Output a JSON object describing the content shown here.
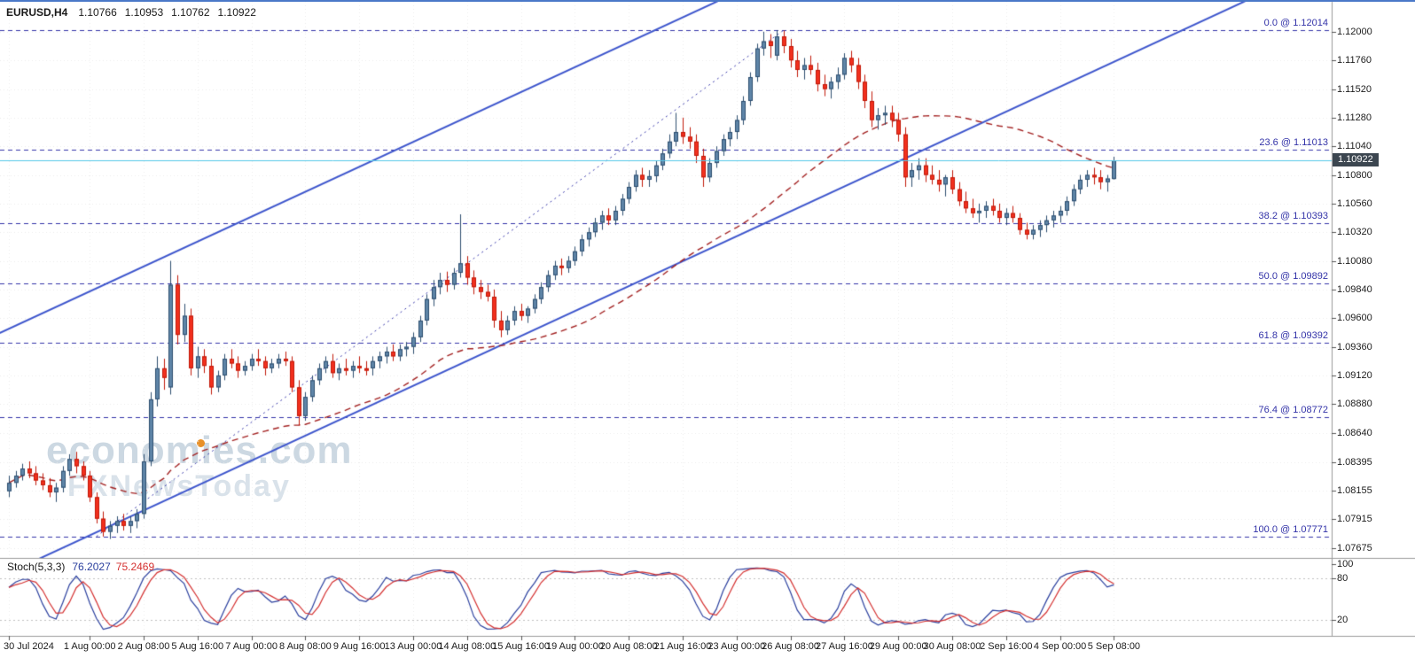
{
  "header": {
    "symbol": "EURUSD,H4",
    "open": "1.10766",
    "high": "1.10953",
    "low": "1.10762",
    "close": "1.10922"
  },
  "watermark": {
    "line1": "economies.com",
    "line2": "FXNewsToday"
  },
  "axis": {
    "current_price_tag": "1.10922",
    "price_labels": [
      "1.12000",
      "1.11760",
      "1.11520",
      "1.11280",
      "1.11040",
      "1.10800",
      "1.10560",
      "1.10320",
      "1.10080",
      "1.09840",
      "1.09600",
      "1.09360",
      "1.09120",
      "1.08880",
      "1.08640",
      "1.08395",
      "1.08155",
      "1.07915",
      "1.07675"
    ],
    "stoch_labels": [
      {
        "text": "100",
        "value": 100
      },
      {
        "text": "80",
        "value": 80
      },
      {
        "text": "20",
        "value": 20
      }
    ],
    "time_labels": [
      {
        "text": "30 Jul 2024",
        "index": 0
      },
      {
        "text": "1 Aug 00:00",
        "index": 12
      },
      {
        "text": "2 Aug 08:00",
        "index": 20
      },
      {
        "text": "5 Aug 16:00",
        "index": 28
      },
      {
        "text": "7 Aug 00:00",
        "index": 36
      },
      {
        "text": "8 Aug 08:00",
        "index": 44
      },
      {
        "text": "9 Aug 16:00",
        "index": 52
      },
      {
        "text": "13 Aug 00:00",
        "index": 60
      },
      {
        "text": "14 Aug 08:00",
        "index": 68
      },
      {
        "text": "15 Aug 16:00",
        "index": 76
      },
      {
        "text": "19 Aug 00:00",
        "index": 84
      },
      {
        "text": "20 Aug 08:00",
        "index": 92
      },
      {
        "text": "21 Aug 16:00",
        "index": 100
      },
      {
        "text": "23 Aug 00:00",
        "index": 108
      },
      {
        "text": "26 Aug 08:00",
        "index": 116
      },
      {
        "text": "27 Aug 16:00",
        "index": 124
      },
      {
        "text": "29 Aug 00:00",
        "index": 132
      },
      {
        "text": "30 Aug 08:00",
        "index": 140
      },
      {
        "text": "2 Sep 16:00",
        "index": 148
      },
      {
        "text": "4 Sep 00:00",
        "index": 156
      },
      {
        "text": "5 Sep 08:00",
        "index": 164
      }
    ]
  },
  "chart_data": {
    "type": "candlestick",
    "symbol": "EURUSD",
    "timeframe": "H4",
    "ylim": [
      1.07591,
      1.12251
    ],
    "current_price": 1.10922,
    "fibonacci": {
      "levels": [
        {
          "label": "0.0 @ 1.12014",
          "price": 1.12014
        },
        {
          "label": "23.6 @ 1.11013",
          "price": 1.11013
        },
        {
          "label": "38.2 @ 1.10393",
          "price": 1.10393
        },
        {
          "label": "50.0 @ 1.09892",
          "price": 1.09892
        },
        {
          "label": "61.8 @ 1.09392",
          "price": 1.09392
        },
        {
          "label": "76.4 @ 1.08772",
          "price": 1.08772
        },
        {
          "label": "100.0 @ 1.07771",
          "price": 1.07771
        }
      ],
      "diagonal": {
        "from": [
          13,
          1.07771
        ],
        "to": [
          115,
          1.12014
        ]
      }
    },
    "trendlines": [
      {
        "name": "channel-upper",
        "from": [
          -4,
          1.09406
        ],
        "to": [
          108,
          1.12329
        ]
      },
      {
        "name": "channel-lower",
        "from": [
          2,
          1.07519
        ],
        "to": [
          196,
          1.12583
        ]
      }
    ],
    "moving_average": {
      "period": 45,
      "style": "dashed"
    },
    "stochastic": {
      "label": "Stoch(5,3,3)",
      "k_value": "76.2027",
      "d_value": "75.2469",
      "k_period": 5,
      "d_period": 3,
      "slowing": 3,
      "levels": [
        20,
        80
      ],
      "scale": [
        0,
        100
      ]
    },
    "candles": [
      [
        1.0815,
        1.0828,
        1.081,
        1.0822
      ],
      [
        1.0822,
        1.0832,
        1.0818,
        1.0828
      ],
      [
        1.0828,
        1.0838,
        1.0824,
        1.0834
      ],
      [
        1.0834,
        1.084,
        1.0826,
        1.083
      ],
      [
        1.083,
        1.0836,
        1.082,
        1.0824
      ],
      [
        1.0824,
        1.083,
        1.0816,
        1.082
      ],
      [
        1.082,
        1.0826,
        1.081,
        1.0814
      ],
      [
        1.0814,
        1.0822,
        1.0806,
        1.0818
      ],
      [
        1.0818,
        1.0836,
        1.0814,
        1.0832
      ],
      [
        1.0832,
        1.0846,
        1.0828,
        1.0842
      ],
      [
        1.0842,
        1.0848,
        1.083,
        1.0836
      ],
      [
        1.0836,
        1.084,
        1.0824,
        1.0828
      ],
      [
        1.0828,
        1.0832,
        1.0806,
        1.081
      ],
      [
        1.081,
        1.0814,
        1.0788,
        1.0792
      ],
      [
        1.0792,
        1.0798,
        1.0777,
        1.0781
      ],
      [
        1.0781,
        1.079,
        1.0775,
        1.0786
      ],
      [
        1.0786,
        1.0794,
        1.078,
        1.079
      ],
      [
        1.079,
        1.0796,
        1.0782,
        1.0786
      ],
      [
        1.0786,
        1.0794,
        1.078,
        1.079
      ],
      [
        1.079,
        1.08,
        1.0784,
        1.0796
      ],
      [
        1.0796,
        1.0846,
        1.0792,
        1.084
      ],
      [
        1.084,
        1.0898,
        1.0836,
        1.0892
      ],
      [
        1.0892,
        1.0928,
        1.0886,
        1.0918
      ],
      [
        1.0918,
        1.0926,
        1.09,
        1.091
      ],
      [
        1.0902,
        1.1008,
        1.0896,
        1.0988
      ],
      [
        1.0988,
        1.0996,
        1.0938,
        1.0946
      ],
      [
        1.0946,
        1.0972,
        1.094,
        1.0962
      ],
      [
        1.0962,
        1.0968,
        1.0912,
        1.0918
      ],
      [
        1.0918,
        1.0936,
        1.091,
        1.0928
      ],
      [
        1.0928,
        1.0934,
        1.0914,
        1.092
      ],
      [
        1.092,
        1.0926,
        1.0896,
        1.0902
      ],
      [
        1.0902,
        1.0916,
        1.0898,
        1.0912
      ],
      [
        1.0912,
        1.093,
        1.0908,
        1.0926
      ],
      [
        1.0926,
        1.0934,
        1.0918,
        1.0922
      ],
      [
        1.0922,
        1.0928,
        1.091,
        1.0916
      ],
      [
        1.0916,
        1.0924,
        1.0912,
        1.092
      ],
      [
        1.092,
        1.093,
        1.0916,
        1.0926
      ],
      [
        1.0926,
        1.0934,
        1.092,
        1.0924
      ],
      [
        1.0924,
        1.0928,
        1.0912,
        1.0918
      ],
      [
        1.0918,
        1.0926,
        1.0914,
        1.0922
      ],
      [
        1.0922,
        1.093,
        1.0918,
        1.0926
      ],
      [
        1.0926,
        1.0932,
        1.092,
        1.0924
      ],
      [
        1.0924,
        1.0928,
        1.0898,
        1.0902
      ],
      [
        1.0902,
        1.0908,
        1.087,
        1.0878
      ],
      [
        1.0878,
        1.0898,
        1.0874,
        1.0894
      ],
      [
        1.0894,
        1.0912,
        1.089,
        1.0908
      ],
      [
        1.0908,
        1.0922,
        1.0904,
        1.0918
      ],
      [
        1.0918,
        1.0928,
        1.0914,
        1.0924
      ],
      [
        1.0924,
        1.093,
        1.091,
        1.0914
      ],
      [
        1.0914,
        1.0922,
        1.0908,
        1.0918
      ],
      [
        1.0918,
        1.0926,
        1.0912,
        1.0916
      ],
      [
        1.0916,
        1.0924,
        1.091,
        1.092
      ],
      [
        1.092,
        1.0928,
        1.0914,
        1.0918
      ],
      [
        1.0918,
        1.0924,
        1.0912,
        1.0916
      ],
      [
        1.0918,
        1.0928,
        1.0912,
        1.0924
      ],
      [
        1.0924,
        1.0932,
        1.0918,
        1.0928
      ],
      [
        1.0928,
        1.0936,
        1.0922,
        1.0932
      ],
      [
        1.0932,
        1.0938,
        1.0924,
        1.0928
      ],
      [
        1.0928,
        1.0938,
        1.0924,
        1.0934
      ],
      [
        1.0934,
        1.094,
        1.0928,
        1.0936
      ],
      [
        1.0936,
        1.0948,
        1.093,
        1.0944
      ],
      [
        1.0944,
        1.0962,
        1.094,
        1.0958
      ],
      [
        1.0958,
        1.098,
        1.0954,
        1.0976
      ],
      [
        1.0976,
        1.0992,
        1.097,
        1.0986
      ],
      [
        1.0986,
        1.0998,
        1.098,
        1.0992
      ],
      [
        1.0992,
        1.0999,
        1.0982,
        1.0988
      ],
      [
        1.0988,
        1.1002,
        1.0984,
        1.0998
      ],
      [
        1.0998,
        1.1047,
        1.0994,
        1.1006
      ],
      [
        1.1006,
        1.1012,
        1.0988,
        1.0994
      ],
      [
        1.0994,
        1.1,
        1.098,
        1.0986
      ],
      [
        1.0986,
        1.0992,
        1.0976,
        1.0982
      ],
      [
        1.0982,
        1.0988,
        1.0974,
        1.0978
      ],
      [
        1.0978,
        1.0984,
        1.0952,
        1.0958
      ],
      [
        1.0958,
        1.0966,
        1.0944,
        1.095
      ],
      [
        1.095,
        1.0962,
        1.0946,
        1.0958
      ],
      [
        1.0958,
        1.097,
        1.0954,
        1.0966
      ],
      [
        1.0966,
        1.0972,
        1.0958,
        1.0962
      ],
      [
        1.0962,
        1.097,
        1.0956,
        1.0968
      ],
      [
        1.0968,
        1.098,
        1.0964,
        1.0976
      ],
      [
        1.0976,
        1.099,
        1.0972,
        1.0986
      ],
      [
        1.0986,
        1.1,
        1.0982,
        1.0996
      ],
      [
        1.0996,
        1.1008,
        1.0992,
        1.1004
      ],
      [
        1.1004,
        1.101,
        1.0996,
        1.1002
      ],
      [
        1.1002,
        1.1012,
        1.0998,
        1.1008
      ],
      [
        1.1008,
        1.102,
        1.1004,
        1.1016
      ],
      [
        1.1016,
        1.103,
        1.1012,
        1.1026
      ],
      [
        1.1026,
        1.1036,
        1.102,
        1.1032
      ],
      [
        1.1032,
        1.1044,
        1.1028,
        1.104
      ],
      [
        1.104,
        1.105,
        1.1034,
        1.1046
      ],
      [
        1.1046,
        1.1052,
        1.1038,
        1.1042
      ],
      [
        1.1042,
        1.1054,
        1.1038,
        1.105
      ],
      [
        1.105,
        1.1064,
        1.1046,
        1.106
      ],
      [
        1.106,
        1.1074,
        1.1056,
        1.107
      ],
      [
        1.107,
        1.1084,
        1.1066,
        1.108
      ],
      [
        1.108,
        1.1086,
        1.107,
        1.1076
      ],
      [
        1.1076,
        1.1084,
        1.107,
        1.1079
      ],
      [
        1.1079,
        1.1092,
        1.1074,
        1.1088
      ],
      [
        1.1088,
        1.1102,
        1.1084,
        1.1098
      ],
      [
        1.1098,
        1.1114,
        1.1094,
        1.1108
      ],
      [
        1.1108,
        1.1132,
        1.1104,
        1.1116
      ],
      [
        1.1116,
        1.1128,
        1.1106,
        1.1112
      ],
      [
        1.1112,
        1.112,
        1.1102,
        1.1108
      ],
      [
        1.1108,
        1.1114,
        1.109,
        1.1096
      ],
      [
        1.1096,
        1.1102,
        1.107,
        1.1078
      ],
      [
        1.1078,
        1.1094,
        1.1074,
        1.109
      ],
      [
        1.109,
        1.1104,
        1.1086,
        1.11
      ],
      [
        1.11,
        1.1114,
        1.1096,
        1.111
      ],
      [
        1.111,
        1.112,
        1.1104,
        1.1116
      ],
      [
        1.1116,
        1.113,
        1.111,
        1.1126
      ],
      [
        1.1126,
        1.1146,
        1.1122,
        1.1142
      ],
      [
        1.1142,
        1.1166,
        1.1138,
        1.1162
      ],
      [
        1.1162,
        1.119,
        1.1158,
        1.1186
      ],
      [
        1.1186,
        1.12,
        1.118,
        1.1192
      ],
      [
        1.1192,
        1.1198,
        1.1178,
        1.1188
      ],
      [
        1.118,
        1.12014,
        1.1176,
        1.1196
      ],
      [
        1.1196,
        1.1201,
        1.1182,
        1.1188
      ],
      [
        1.1188,
        1.1194,
        1.117,
        1.1176
      ],
      [
        1.1176,
        1.1184,
        1.1162,
        1.1168
      ],
      [
        1.1168,
        1.1178,
        1.116,
        1.1172
      ],
      [
        1.1172,
        1.118,
        1.1164,
        1.1168
      ],
      [
        1.1168,
        1.1174,
        1.115,
        1.1156
      ],
      [
        1.1156,
        1.1164,
        1.1146,
        1.1152
      ],
      [
        1.1152,
        1.1162,
        1.1144,
        1.1158
      ],
      [
        1.1158,
        1.117,
        1.1152,
        1.1164
      ],
      [
        1.1164,
        1.1182,
        1.116,
        1.1178
      ],
      [
        1.1178,
        1.1184,
        1.1166,
        1.1172
      ],
      [
        1.1172,
        1.1178,
        1.1152,
        1.1158
      ],
      [
        1.1158,
        1.1164,
        1.1136,
        1.1142
      ],
      [
        1.1142,
        1.115,
        1.112,
        1.1126
      ],
      [
        1.1126,
        1.1136,
        1.1118,
        1.113
      ],
      [
        1.113,
        1.1138,
        1.1122,
        1.1132
      ],
      [
        1.1132,
        1.1138,
        1.112,
        1.1126
      ],
      [
        1.1126,
        1.1132,
        1.1108,
        1.1114
      ],
      [
        1.1114,
        1.112,
        1.107,
        1.1078
      ],
      [
        1.1078,
        1.109,
        1.107,
        1.1084
      ],
      [
        1.1084,
        1.1094,
        1.1076,
        1.1088
      ],
      [
        1.1088,
        1.1094,
        1.1074,
        1.108
      ],
      [
        1.108,
        1.1088,
        1.1072,
        1.1076
      ],
      [
        1.1076,
        1.1084,
        1.1066,
        1.1072
      ],
      [
        1.1072,
        1.108,
        1.1062,
        1.1078
      ],
      [
        1.1078,
        1.1084,
        1.1064,
        1.1068
      ],
      [
        1.1068,
        1.1074,
        1.1054,
        1.1058
      ],
      [
        1.1058,
        1.1066,
        1.1048,
        1.1052
      ],
      [
        1.1052,
        1.106,
        1.1044,
        1.1048
      ],
      [
        1.1048,
        1.1056,
        1.104,
        1.105
      ],
      [
        1.105,
        1.1058,
        1.1044,
        1.1054
      ],
      [
        1.1054,
        1.106,
        1.1046,
        1.105
      ],
      [
        1.105,
        1.1056,
        1.104,
        1.1044
      ],
      [
        1.1044,
        1.1052,
        1.1038,
        1.1048
      ],
      [
        1.1048,
        1.1054,
        1.104,
        1.1044
      ],
      [
        1.1044,
        1.1048,
        1.103,
        1.1034
      ],
      [
        1.1034,
        1.104,
        1.1026,
        1.103
      ],
      [
        1.103,
        1.1038,
        1.1026,
        1.1034
      ],
      [
        1.1034,
        1.1042,
        1.1028,
        1.1038
      ],
      [
        1.1038,
        1.1046,
        1.1032,
        1.1042
      ],
      [
        1.1042,
        1.105,
        1.1036,
        1.1046
      ],
      [
        1.1046,
        1.1054,
        1.104,
        1.105
      ],
      [
        1.105,
        1.1062,
        1.1046,
        1.1058
      ],
      [
        1.1058,
        1.1072,
        1.1054,
        1.1068
      ],
      [
        1.1068,
        1.108,
        1.1064,
        1.1076
      ],
      [
        1.1076,
        1.1084,
        1.107,
        1.108
      ],
      [
        1.108,
        1.1086,
        1.1072,
        1.1078
      ],
      [
        1.1078,
        1.1084,
        1.1068,
        1.1074
      ],
      [
        1.1074,
        1.108,
        1.1066,
        1.1077
      ],
      [
        1.10766,
        1.10953,
        1.10762,
        1.10922
      ]
    ]
  },
  "colors": {
    "bull_candle_fill": "#5f85a8",
    "bull_candle_border": "#2c4d6e",
    "bear_candle_fill": "#f2301e",
    "bear_candle_border": "#c01808",
    "ma_line": "#a32222",
    "channel_line": "#3d55cc",
    "fib_line": "#3333a8",
    "price_line": "#56c8e8",
    "price_tag_bg": "#3c4650",
    "grid": "#ececec",
    "separator": "#9a9a9a",
    "stoch_k": "#2a3f9e",
    "stoch_d": "#d43030",
    "stoch_level": "#c0c0c0",
    "watermark_accent": "#e89028"
  }
}
